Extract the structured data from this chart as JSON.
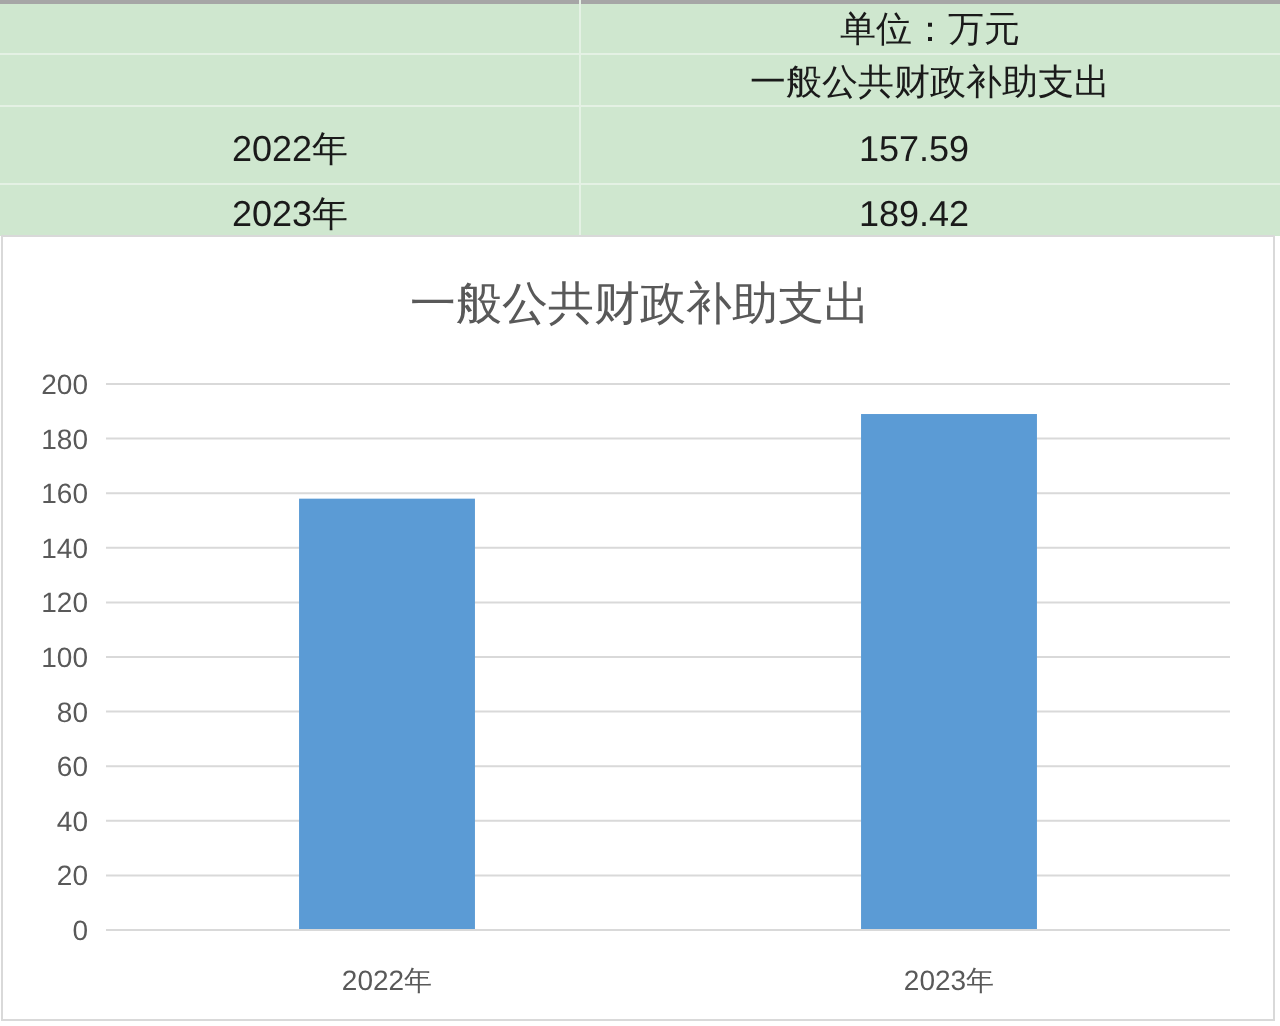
{
  "chart_data": [
    {
      "type": "other",
      "title": "一般公共财政补助支出",
      "annotations": [
        "单位：万元"
      ],
      "categories": [
        "2022年",
        "2023年"
      ],
      "values": [
        157.59,
        189.42
      ],
      "data_labels": true
    },
    {
      "type": "bar",
      "title": "一般公共财政补助支出",
      "categories": [
        "2022年",
        "2023年"
      ],
      "values": [
        158,
        189
      ],
      "color": "#5b9bd5",
      "ylim": [
        0,
        200
      ],
      "yticks": [
        0,
        20,
        40,
        60,
        80,
        100,
        120,
        140,
        160,
        180,
        200
      ],
      "grid": "y"
    }
  ]
}
